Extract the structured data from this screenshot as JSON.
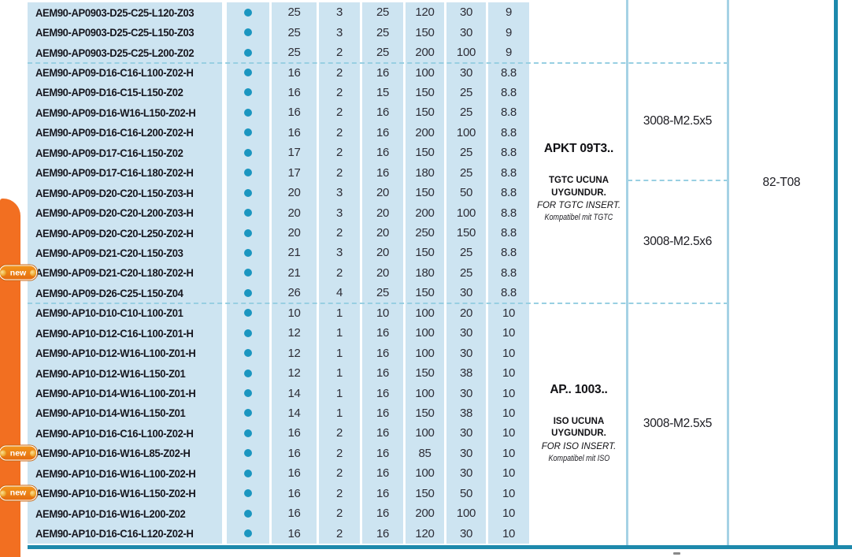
{
  "page": {
    "badge_label": "new"
  },
  "colors": {
    "row_bg": "#cde4f1",
    "stock_dot": "#1b96c0",
    "accent_orange": "#f26f21",
    "frame_teal": "#1d89ac",
    "column_line_blue": "#a5d2e5",
    "dashed_blue": "#98cfe2"
  },
  "sections": [
    {
      "name": "AP0903",
      "rows": [
        {
          "code": "AEM90-AP0903-D25-C25-L120-Z03",
          "new": false,
          "values": [
            "25",
            "3",
            "25",
            "120",
            "30",
            "9"
          ]
        },
        {
          "code": "AEM90-AP0903-D25-C25-L150-Z03",
          "new": false,
          "values": [
            "25",
            "3",
            "25",
            "150",
            "30",
            "9"
          ]
        },
        {
          "code": "AEM90-AP0903-D25-C25-L200-Z02",
          "new": false,
          "values": [
            "25",
            "2",
            "25",
            "200",
            "100",
            "9"
          ]
        }
      ],
      "insert_info": null,
      "screws": [],
      "wrench": ""
    },
    {
      "name": "AP09",
      "rows": [
        {
          "code": "AEM90-AP09-D16-C16-L100-Z02-H",
          "new": false,
          "values": [
            "16",
            "2",
            "16",
            "100",
            "30",
            "8.8"
          ]
        },
        {
          "code": "AEM90-AP09-D16-C15-L150-Z02",
          "new": false,
          "values": [
            "16",
            "2",
            "15",
            "150",
            "25",
            "8.8"
          ]
        },
        {
          "code": "AEM90-AP09-D16-W16-L150-Z02-H",
          "new": false,
          "values": [
            "16",
            "2",
            "16",
            "150",
            "25",
            "8.8"
          ]
        },
        {
          "code": "AEM90-AP09-D16-C16-L200-Z02-H",
          "new": false,
          "values": [
            "16",
            "2",
            "16",
            "200",
            "100",
            "8.8"
          ]
        },
        {
          "code": "AEM90-AP09-D17-C16-L150-Z02",
          "new": false,
          "values": [
            "17",
            "2",
            "16",
            "150",
            "25",
            "8.8"
          ]
        },
        {
          "code": "AEM90-AP09-D17-C16-L180-Z02-H",
          "new": false,
          "values": [
            "17",
            "2",
            "16",
            "180",
            "25",
            "8.8"
          ]
        },
        {
          "code": "AEM90-AP09-D20-C20-L150-Z03-H",
          "new": false,
          "values": [
            "20",
            "3",
            "20",
            "150",
            "50",
            "8.8"
          ]
        },
        {
          "code": "AEM90-AP09-D20-C20-L200-Z03-H",
          "new": false,
          "values": [
            "20",
            "3",
            "20",
            "200",
            "100",
            "8.8"
          ]
        },
        {
          "code": "AEM90-AP09-D20-C20-L250-Z02-H",
          "new": false,
          "values": [
            "20",
            "2",
            "20",
            "250",
            "150",
            "8.8"
          ]
        },
        {
          "code": "AEM90-AP09-D21-C20-L150-Z03",
          "new": false,
          "values": [
            "21",
            "3",
            "20",
            "150",
            "25",
            "8.8"
          ]
        },
        {
          "code": "AEM90-AP09-D21-C20-L180-Z02-H",
          "new": true,
          "values": [
            "21",
            "2",
            "20",
            "180",
            "25",
            "8.8"
          ]
        },
        {
          "code": "AEM90-AP09-D26-C25-L150-Z04",
          "new": false,
          "values": [
            "26",
            "4",
            "25",
            "150",
            "30",
            "8.8"
          ]
        }
      ],
      "insert_info": {
        "title": "APKT 09T3..",
        "line_tr": "TGTC UCUNA UYGUNDUR.",
        "line_en": "FOR TGTC INSERT.",
        "line_de": "Kompatibel mit TGTC"
      },
      "screws": [
        {
          "label": "3008-M2.5x5"
        },
        {
          "label": "3008-M2.5x6"
        }
      ],
      "wrench": "82-T08"
    },
    {
      "name": "AP10",
      "rows": [
        {
          "code": "AEM90-AP10-D10-C10-L100-Z01",
          "new": false,
          "values": [
            "10",
            "1",
            "10",
            "100",
            "20",
            "10"
          ]
        },
        {
          "code": "AEM90-AP10-D12-C16-L100-Z01-H",
          "new": false,
          "values": [
            "12",
            "1",
            "16",
            "100",
            "30",
            "10"
          ]
        },
        {
          "code": "AEM90-AP10-D12-W16-L100-Z01-H",
          "new": false,
          "values": [
            "12",
            "1",
            "16",
            "100",
            "30",
            "10"
          ]
        },
        {
          "code": "AEM90-AP10-D12-W16-L150-Z01",
          "new": false,
          "values": [
            "12",
            "1",
            "16",
            "150",
            "38",
            "10"
          ]
        },
        {
          "code": "AEM90-AP10-D14-W16-L100-Z01-H",
          "new": false,
          "values": [
            "14",
            "1",
            "16",
            "100",
            "30",
            "10"
          ]
        },
        {
          "code": "AEM90-AP10-D14-W16-L150-Z01",
          "new": false,
          "values": [
            "14",
            "1",
            "16",
            "150",
            "38",
            "10"
          ]
        },
        {
          "code": "AEM90-AP10-D16-C16-L100-Z02-H",
          "new": false,
          "values": [
            "16",
            "2",
            "16",
            "100",
            "30",
            "10"
          ]
        },
        {
          "code": "AEM90-AP10-D16-W16-L85-Z02-H",
          "new": true,
          "values": [
            "16",
            "2",
            "16",
            "85",
            "30",
            "10"
          ]
        },
        {
          "code": "AEM90-AP10-D16-W16-L100-Z02-H",
          "new": false,
          "values": [
            "16",
            "2",
            "16",
            "100",
            "30",
            "10"
          ]
        },
        {
          "code": "AEM90-AP10-D16-W16-L150-Z02-H",
          "new": true,
          "values": [
            "16",
            "2",
            "16",
            "150",
            "50",
            "10"
          ]
        },
        {
          "code": "AEM90-AP10-D16-W16-L200-Z02",
          "new": false,
          "values": [
            "16",
            "2",
            "16",
            "200",
            "100",
            "10"
          ]
        },
        {
          "code": "AEM90-AP10-D16-C16-L120-Z02-H",
          "new": false,
          "values": [
            "16",
            "2",
            "16",
            "120",
            "30",
            "10"
          ]
        }
      ],
      "insert_info": {
        "title": "AP.. 1003..",
        "line_tr": "ISO UCUNA UYGUNDUR.",
        "line_en": "FOR ISO INSERT.",
        "line_de": "Kompatibel mit ISO"
      },
      "screws": [
        {
          "label": "3008-M2.5x5"
        }
      ],
      "wrench": ""
    }
  ]
}
